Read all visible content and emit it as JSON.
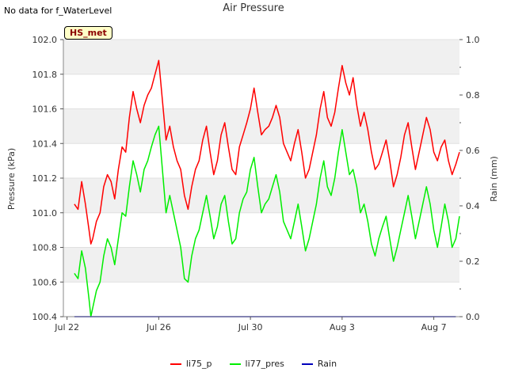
{
  "corner_note": "No data for f_WaterLevel",
  "station_label": "HS_met",
  "chart_data": {
    "type": "line",
    "title": "Air Pressure",
    "xlabel": "",
    "ylabel": "Pressure (kPa)",
    "y2label": "Rain (mm)",
    "ylim": [
      100.4,
      102.0
    ],
    "y2lim": [
      0.0,
      1.0
    ],
    "xlim": [
      -0.1,
      10.7
    ],
    "yticks": [
      "100.4",
      "100.6",
      "100.8",
      "101.0",
      "101.2",
      "101.4",
      "101.6",
      "101.8",
      "102.0"
    ],
    "y2ticks": [
      "0.0",
      "0.2",
      "0.4",
      "0.6",
      "0.8",
      "1.0"
    ],
    "xticks": [
      {
        "label": "Jul 22",
        "day": 0
      },
      {
        "label": "Jul 26",
        "day": 2.5
      },
      {
        "label": "Jul 30",
        "day": 5.0
      },
      {
        "label": "Aug 3",
        "day": 7.5
      },
      {
        "label": "Aug 7",
        "day": 10.0
      }
    ],
    "legend_position": "bottom",
    "series": [
      {
        "name": "li75_p",
        "color": "#ff0000",
        "axis": "left",
        "x": [
          0.2,
          0.3,
          0.4,
          0.5,
          0.6,
          0.65,
          0.7,
          0.8,
          0.9,
          1.0,
          1.1,
          1.2,
          1.3,
          1.4,
          1.5,
          1.6,
          1.7,
          1.8,
          1.9,
          2.0,
          2.1,
          2.2,
          2.3,
          2.4,
          2.5,
          2.6,
          2.7,
          2.8,
          2.9,
          3.0,
          3.1,
          3.2,
          3.3,
          3.4,
          3.5,
          3.6,
          3.7,
          3.8,
          3.9,
          4.0,
          4.1,
          4.2,
          4.3,
          4.4,
          4.5,
          4.6,
          4.7,
          4.8,
          4.9,
          5.0,
          5.1,
          5.2,
          5.3,
          5.4,
          5.5,
          5.6,
          5.7,
          5.8,
          5.9,
          6.0,
          6.1,
          6.2,
          6.3,
          6.4,
          6.5,
          6.6,
          6.7,
          6.8,
          6.9,
          7.0,
          7.1,
          7.2,
          7.3,
          7.4,
          7.5,
          7.6,
          7.7,
          7.8,
          7.9,
          8.0,
          8.1,
          8.2,
          8.3,
          8.4,
          8.5,
          8.6,
          8.7,
          8.8,
          8.9,
          9.0,
          9.1,
          9.2,
          9.3,
          9.4,
          9.5,
          9.6,
          9.7,
          9.8,
          9.9,
          10.0,
          10.1,
          10.2,
          10.3,
          10.4,
          10.5,
          10.6,
          10.7
        ],
        "values": [
          101.05,
          101.02,
          101.18,
          101.05,
          100.9,
          100.82,
          100.85,
          100.95,
          101.0,
          101.15,
          101.22,
          101.18,
          101.08,
          101.25,
          101.38,
          101.35,
          101.55,
          101.7,
          101.6,
          101.52,
          101.62,
          101.68,
          101.72,
          101.8,
          101.88,
          101.65,
          101.42,
          101.5,
          101.38,
          101.3,
          101.25,
          101.1,
          101.02,
          101.15,
          101.25,
          101.3,
          101.42,
          101.5,
          101.35,
          101.22,
          101.3,
          101.45,
          101.52,
          101.38,
          101.25,
          101.22,
          101.38,
          101.45,
          101.52,
          101.6,
          101.72,
          101.58,
          101.45,
          101.48,
          101.5,
          101.55,
          101.62,
          101.55,
          101.4,
          101.35,
          101.3,
          101.4,
          101.48,
          101.35,
          101.2,
          101.25,
          101.35,
          101.45,
          101.6,
          101.7,
          101.55,
          101.5,
          101.58,
          101.72,
          101.85,
          101.75,
          101.68,
          101.78,
          101.62,
          101.5,
          101.58,
          101.48,
          101.35,
          101.25,
          101.28,
          101.35,
          101.42,
          101.3,
          101.15,
          101.22,
          101.32,
          101.45,
          101.52,
          101.38,
          101.25,
          101.35,
          101.45,
          101.55,
          101.48,
          101.35,
          101.3,
          101.38,
          101.42,
          101.3,
          101.22,
          101.28,
          101.35
        ],
        "y2": false
      },
      {
        "name": "li77_pres",
        "color": "#00ee00",
        "axis": "left",
        "x": [
          0.2,
          0.3,
          0.4,
          0.5,
          0.6,
          0.65,
          0.7,
          0.8,
          0.9,
          1.0,
          1.1,
          1.2,
          1.3,
          1.4,
          1.5,
          1.6,
          1.7,
          1.8,
          1.9,
          2.0,
          2.1,
          2.2,
          2.3,
          2.4,
          2.5,
          2.6,
          2.7,
          2.8,
          2.9,
          3.0,
          3.1,
          3.2,
          3.3,
          3.4,
          3.5,
          3.6,
          3.7,
          3.8,
          3.9,
          4.0,
          4.1,
          4.2,
          4.3,
          4.4,
          4.5,
          4.6,
          4.7,
          4.8,
          4.9,
          5.0,
          5.1,
          5.2,
          5.3,
          5.4,
          5.5,
          5.6,
          5.7,
          5.8,
          5.9,
          6.0,
          6.1,
          6.2,
          6.3,
          6.4,
          6.5,
          6.6,
          6.7,
          6.8,
          6.9,
          7.0,
          7.1,
          7.2,
          7.3,
          7.4,
          7.5,
          7.6,
          7.7,
          7.8,
          7.9,
          8.0,
          8.1,
          8.2,
          8.3,
          8.4,
          8.5,
          8.6,
          8.7,
          8.8,
          8.9,
          9.0,
          9.1,
          9.2,
          9.3,
          9.4,
          9.5,
          9.6,
          9.7,
          9.8,
          9.9,
          10.0,
          10.1,
          10.2,
          10.3,
          10.4,
          10.5,
          10.6,
          10.7
        ],
        "values": [
          100.65,
          100.62,
          100.78,
          100.68,
          100.5,
          100.4,
          100.45,
          100.55,
          100.6,
          100.75,
          100.85,
          100.8,
          100.7,
          100.85,
          101.0,
          100.98,
          101.15,
          101.3,
          101.22,
          101.12,
          101.25,
          101.3,
          101.38,
          101.45,
          101.5,
          101.25,
          101.0,
          101.1,
          101.0,
          100.9,
          100.8,
          100.62,
          100.6,
          100.75,
          100.85,
          100.9,
          101.0,
          101.1,
          100.98,
          100.85,
          100.92,
          101.05,
          101.1,
          100.95,
          100.82,
          100.85,
          101.0,
          101.08,
          101.12,
          101.25,
          101.32,
          101.15,
          101.0,
          101.05,
          101.08,
          101.15,
          101.22,
          101.12,
          100.95,
          100.9,
          100.85,
          100.95,
          101.05,
          100.92,
          100.78,
          100.85,
          100.95,
          101.05,
          101.2,
          101.3,
          101.15,
          101.1,
          101.2,
          101.35,
          101.48,
          101.35,
          101.22,
          101.25,
          101.15,
          101.0,
          101.05,
          100.95,
          100.82,
          100.75,
          100.85,
          100.92,
          100.98,
          100.85,
          100.72,
          100.8,
          100.9,
          101.0,
          101.1,
          100.98,
          100.85,
          100.95,
          101.05,
          101.15,
          101.05,
          100.9,
          100.8,
          100.92,
          101.05,
          100.95,
          100.8,
          100.85,
          100.98
        ],
        "y2": false
      },
      {
        "name": "Rain",
        "color": "#0000bb",
        "axis": "right",
        "x": [
          0.2,
          10.6
        ],
        "values": [
          0.0,
          0.0
        ],
        "y2": true
      }
    ]
  }
}
